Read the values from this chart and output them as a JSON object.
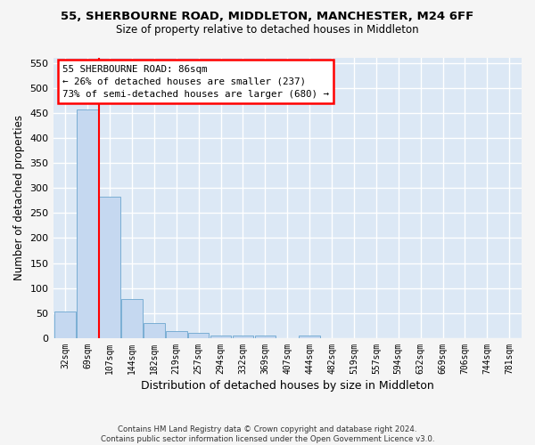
{
  "title1": "55, SHERBOURNE ROAD, MIDDLETON, MANCHESTER, M24 6FF",
  "title2": "Size of property relative to detached houses in Middleton",
  "xlabel": "Distribution of detached houses by size in Middleton",
  "ylabel": "Number of detached properties",
  "bar_labels": [
    "32sqm",
    "69sqm",
    "107sqm",
    "144sqm",
    "182sqm",
    "219sqm",
    "257sqm",
    "294sqm",
    "332sqm",
    "369sqm",
    "407sqm",
    "444sqm",
    "482sqm",
    "519sqm",
    "557sqm",
    "594sqm",
    "632sqm",
    "669sqm",
    "706sqm",
    "744sqm",
    "781sqm"
  ],
  "bar_values": [
    53,
    457,
    283,
    78,
    30,
    14,
    10,
    5,
    5,
    6,
    0,
    5,
    0,
    0,
    0,
    0,
    0,
    0,
    0,
    0,
    0
  ],
  "bar_color": "#c5d8f0",
  "bar_edge_color": "#7aaed4",
  "bg_color": "#dce8f5",
  "grid_color": "#ffffff",
  "ylim": [
    0,
    560
  ],
  "yticks": [
    0,
    50,
    100,
    150,
    200,
    250,
    300,
    350,
    400,
    450,
    500,
    550
  ],
  "property_line_x": 1.5,
  "annotation_line1": "55 SHERBOURNE ROAD: 86sqm",
  "annotation_line2": "← 26% of detached houses are smaller (237)",
  "annotation_line3": "73% of semi-detached houses are larger (680) →",
  "footer1": "Contains HM Land Registry data © Crown copyright and database right 2024.",
  "footer2": "Contains public sector information licensed under the Open Government Licence v3.0.",
  "fig_bg": "#f5f5f5"
}
